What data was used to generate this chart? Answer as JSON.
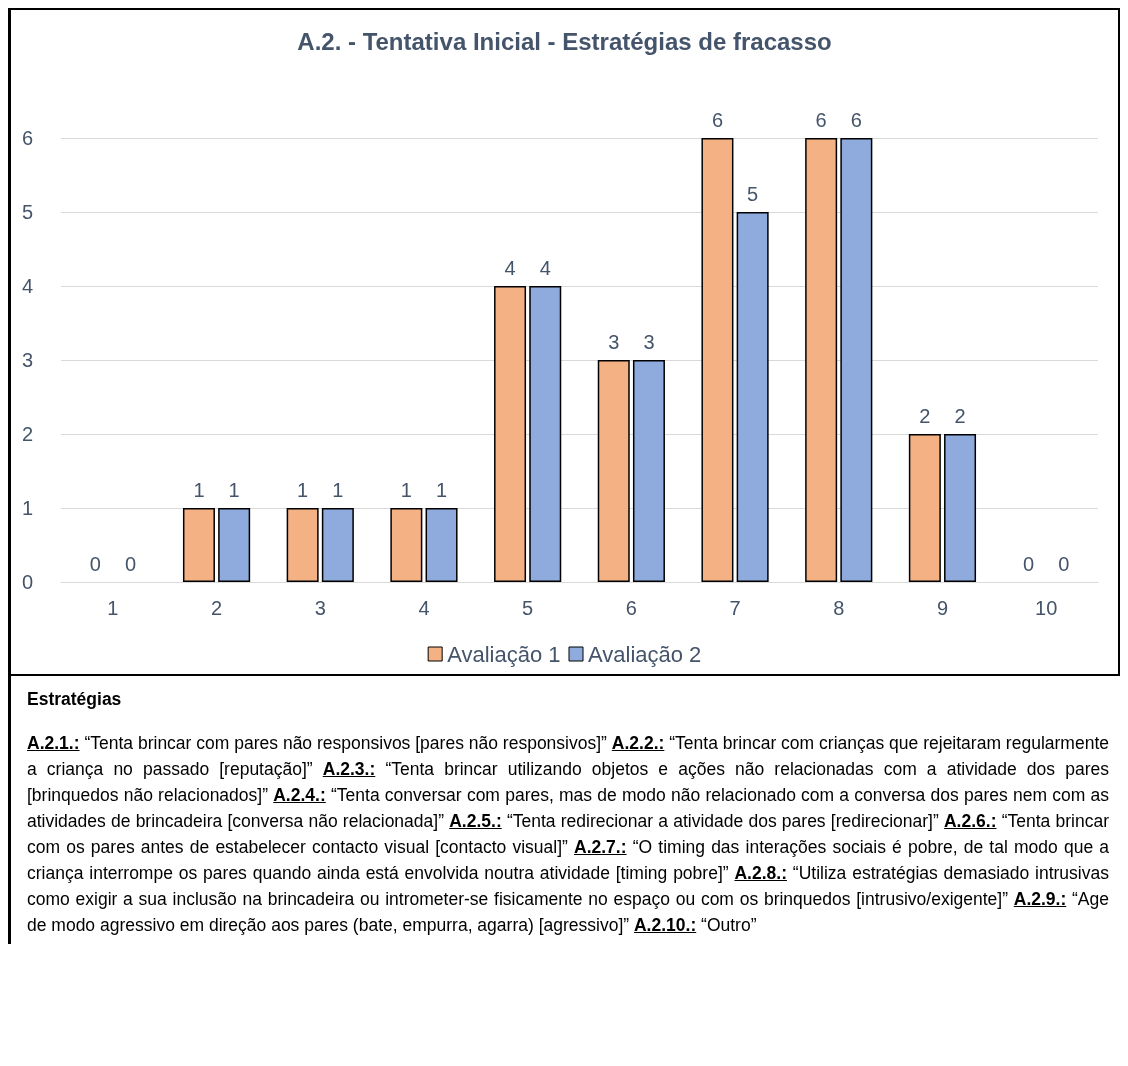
{
  "chart_data": {
    "type": "bar",
    "title": "A.2. - Tentativa Inicial - Estratégias de fracasso",
    "categories": [
      "1",
      "2",
      "3",
      "4",
      "5",
      "6",
      "7",
      "8",
      "9",
      "10"
    ],
    "series": [
      {
        "name": "Avaliação 1",
        "color": "#f4b183",
        "values": [
          0,
          1,
          1,
          1,
          4,
          3,
          6,
          6,
          2,
          0
        ]
      },
      {
        "name": "Avaliação 2",
        "color": "#8faadc",
        "values": [
          0,
          1,
          1,
          1,
          4,
          3,
          5,
          6,
          2,
          0
        ]
      }
    ],
    "ylim": [
      0,
      6
    ],
    "yticks": [
      0,
      1,
      2,
      3,
      4,
      5,
      6
    ],
    "grid": "y",
    "legend": "bottom",
    "data_labels": true,
    "annotations": [
      "Estratégias",
      "A.2.1.: “Tenta brincar com pares não responsivos [pares não responsivos]”",
      "A.2.2.: “Tenta brincar com crianças que rejeitaram regularmente a criança no passado [reputação]”",
      "A.2.3.: “Tenta brincar utilizando objetos e ações não relacionadas com a atividade dos pares [brinquedos não relacionados]”",
      "A.2.4.: “Tenta conversar com pares, mas de modo não relacionado com a conversa dos pares nem com as atividades de brincadeira [conversa não relacionada]”",
      "A.2.5.: “Tenta redirecionar a atividade dos pares [redirecionar]”",
      "A.2.6.: “Tenta brincar com os pares antes de estabelecer contacto visual [contacto visual]”",
      "A.2.7.: “O timing das interações sociais é pobre, de tal modo que a criança interrompe os pares quando ainda está envolvida noutra atividade [timing pobre]”",
      "A.2.8.: “Utiliza estratégias demasiado intrusivas como exigir a sua inclusão na brincadeira ou intrometer-se fisicamente no espaço ou com os brinquedos [intrusivo/exigente]”",
      "A.2.9.: “Age de modo agressivo em direção aos pares (bate, empurra, agarra) [agressivo]”",
      "A.2.10.: “Outro”"
    ]
  }
}
